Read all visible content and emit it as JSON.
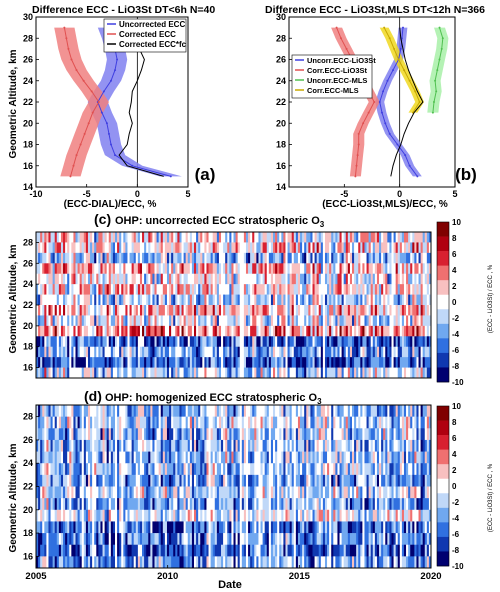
{
  "chart_data": [
    {
      "type": "line",
      "panel_label": "(a)",
      "title": "Difference ECC - LiO3St DT<6h N=40",
      "xlabel": "(ECC-DIAL)/ECC, %",
      "ylabel": "Geometric Altitude, km",
      "xlim": [
        -10,
        5
      ],
      "ylim": [
        14,
        30
      ],
      "xticks": [
        "-10",
        "-5",
        "0",
        "5"
      ],
      "yticks": [
        "14",
        "16",
        "18",
        "20",
        "22",
        "24",
        "26",
        "28",
        "30"
      ],
      "legend_position": "top-right",
      "series": [
        {
          "name": "Uncorrected ECC",
          "color": "#3f3fe0",
          "band_color": "#8080f0",
          "altitude": [
            15,
            16,
            17,
            18,
            19,
            20,
            21,
            22,
            23,
            24,
            25,
            26,
            27,
            28,
            29
          ],
          "mean": [
            3.3,
            -0.5,
            -2.2,
            -2.6,
            -2.8,
            -3.0,
            -3.5,
            -3.9,
            -3.3,
            -2.6,
            -2.2,
            -2.0,
            -2.2,
            -2.5,
            -2.9
          ],
          "lower": [
            2.2,
            -1.5,
            -3.2,
            -3.6,
            -3.8,
            -4.0,
            -4.5,
            -4.9,
            -4.3,
            -3.6,
            -3.2,
            -3.0,
            -3.2,
            -3.5,
            -3.9
          ],
          "upper": [
            4.4,
            0.5,
            -1.2,
            -1.6,
            -1.8,
            -2.0,
            -2.5,
            -2.9,
            -2.3,
            -1.6,
            -1.2,
            -1.0,
            -1.2,
            -1.5,
            -1.9
          ]
        },
        {
          "name": "Corrected ECC",
          "color": "#e05050",
          "band_color": "#f08080",
          "altitude": [
            15,
            16,
            17,
            18,
            19,
            20,
            21,
            22,
            23,
            24,
            25,
            26,
            27,
            28,
            29
          ],
          "mean": [
            -6.6,
            -6.3,
            -6.0,
            -5.6,
            -5.2,
            -4.8,
            -4.4,
            -3.8,
            -4.5,
            -5.3,
            -6.0,
            -6.5,
            -6.8,
            -7.0,
            -7.2
          ],
          "lower": [
            -7.6,
            -7.3,
            -7.0,
            -6.6,
            -6.2,
            -5.8,
            -5.4,
            -4.8,
            -5.5,
            -6.3,
            -7.0,
            -7.5,
            -7.8,
            -8.0,
            -8.2
          ],
          "upper": [
            -5.6,
            -5.3,
            -5.0,
            -4.6,
            -4.2,
            -3.8,
            -3.4,
            -2.8,
            -3.5,
            -4.3,
            -5.0,
            -5.5,
            -5.8,
            -6.0,
            -6.2
          ]
        },
        {
          "name": "Corrected ECC*fc",
          "color": "#000000",
          "altitude": [
            15,
            16,
            17,
            18,
            19,
            20,
            21,
            22,
            23,
            24,
            25,
            26,
            27,
            28,
            29
          ],
          "mean": [
            2.6,
            -1.0,
            -1.8,
            -1.0,
            -0.8,
            -0.5,
            -0.8,
            -0.6,
            -0.5,
            0.0,
            0.4,
            0.7,
            0.2,
            -1.0,
            -1.8
          ]
        }
      ]
    },
    {
      "type": "line",
      "panel_label": "(b)",
      "title": "Difference ECC - LiO3St,MLS DT<12h N=366",
      "xlabel": "(ECC-LiO3St,MLS)/ECC, %",
      "ylabel": "",
      "xlim": [
        -10,
        5
      ],
      "ylim": [
        14,
        30
      ],
      "xticks": [
        "-5",
        "0",
        "5"
      ],
      "yticks": [
        "14",
        "16",
        "18",
        "20",
        "22",
        "24",
        "26",
        "28",
        "30"
      ],
      "legend_position": "middle-left",
      "series": [
        {
          "name": "Uncorr.ECC-LiO3St",
          "color": "#3f3fe0",
          "band_color": "#8080f0",
          "altitude": [
            15,
            16,
            17,
            18,
            19,
            20,
            21,
            22,
            23,
            24,
            25,
            26,
            27,
            28,
            29
          ],
          "mean": [
            1.6,
            0.9,
            0.5,
            -0.2,
            -0.9,
            -1.3,
            -1.6,
            -1.8,
            -1.5,
            -1.1,
            -0.6,
            -0.1,
            0.1,
            0.2,
            0.3
          ],
          "lower": [
            1.2,
            0.5,
            0.1,
            -0.6,
            -1.3,
            -1.7,
            -2.0,
            -2.2,
            -1.9,
            -1.5,
            -1.0,
            -0.5,
            -0.3,
            -0.2,
            -0.1
          ],
          "upper": [
            2.0,
            1.3,
            0.9,
            0.2,
            -0.5,
            -0.9,
            -1.2,
            -1.4,
            -1.1,
            -0.7,
            -0.2,
            0.3,
            0.5,
            0.6,
            0.7
          ]
        },
        {
          "name": "Corr.ECC-LiO3St",
          "color": "#e05050",
          "band_color": "#f08080",
          "altitude": [
            15,
            16,
            17,
            18,
            19,
            20,
            21,
            22,
            23,
            24,
            25,
            26,
            27,
            28,
            29
          ],
          "mean": [
            -4.0,
            -3.9,
            -3.8,
            -3.7,
            -3.7,
            -3.3,
            -2.8,
            -2.3,
            -2.8,
            -3.3,
            -3.8,
            -4.3,
            -4.8,
            -5.3,
            -5.7
          ],
          "lower": [
            -4.5,
            -4.4,
            -4.3,
            -4.2,
            -4.2,
            -3.8,
            -3.3,
            -2.8,
            -3.3,
            -3.8,
            -4.3,
            -4.8,
            -5.3,
            -5.8,
            -6.2
          ],
          "upper": [
            -3.5,
            -3.4,
            -3.3,
            -3.2,
            -3.2,
            -2.8,
            -2.3,
            -1.8,
            -2.3,
            -2.8,
            -3.3,
            -3.8,
            -4.3,
            -4.8,
            -5.2
          ]
        },
        {
          "name": "Uncorr.ECC-MLS",
          "color": "#50c050",
          "band_color": "#a8f0a8",
          "altitude": [
            21,
            22,
            23,
            24,
            25,
            26,
            27,
            28,
            29
          ],
          "mean": [
            3.0,
            3.1,
            3.3,
            3.2,
            3.4,
            3.6,
            3.8,
            3.9,
            3.6
          ],
          "lower": [
            2.5,
            2.6,
            2.8,
            2.7,
            2.9,
            3.1,
            3.3,
            3.4,
            3.1
          ],
          "upper": [
            3.5,
            3.6,
            3.8,
            3.7,
            3.9,
            4.1,
            4.3,
            4.4,
            4.1
          ]
        },
        {
          "name": "Corr.ECC-MLS",
          "color": "#c8a800",
          "band_color": "#f0d820",
          "altitude": [
            21,
            22,
            23,
            24,
            25,
            26,
            27,
            28,
            29
          ],
          "mean": [
            1.2,
            1.8,
            1.4,
            0.9,
            0.4,
            -0.1,
            -0.5,
            -0.9,
            -1.4
          ],
          "lower": [
            0.8,
            1.4,
            1.0,
            0.5,
            0.0,
            -0.5,
            -0.9,
            -1.3,
            -1.8
          ],
          "upper": [
            1.6,
            2.2,
            1.8,
            1.3,
            0.8,
            0.3,
            -0.1,
            -0.5,
            -1.0
          ]
        },
        {
          "name": "",
          "color": "#000000",
          "altitude": [
            15,
            16,
            17,
            18,
            19,
            20,
            21,
            22,
            23,
            24,
            25,
            26,
            27,
            28,
            29
          ],
          "mean": [
            -0.8,
            -0.6,
            -0.3,
            0.1,
            0.4,
            0.8,
            1.3,
            2.1,
            1.6,
            1.2,
            0.8,
            0.5,
            0.3,
            0.1,
            0.0
          ]
        }
      ]
    },
    {
      "type": "heatmap",
      "panel_label": "(c)",
      "title": "OHP: uncorrected ECC stratospheric O",
      "title_subscript": "3",
      "xlabel": "",
      "ylabel": "Geometric Altitude, km",
      "colorbar_label": "(ECC - LiO3St) / ECC , %",
      "xlim": [
        2005,
        2020
      ],
      "ylim": [
        15,
        29
      ],
      "yticks": [
        "16",
        "18",
        "20",
        "22",
        "24",
        "26",
        "28"
      ],
      "colorbar_ticks": [
        "10",
        "8",
        "6",
        "4",
        "2",
        "0",
        "-2",
        "-4",
        "-6",
        "-8",
        "-10"
      ],
      "colorbar_colors": [
        "#800000",
        "#b00010",
        "#d82030",
        "#f07070",
        "#f8c0c0",
        "#ffffff",
        "#c0d8f8",
        "#70a8f0",
        "#3070e0",
        "#1038b0",
        "#000070"
      ],
      "row_biases": [
        -2,
        -7,
        -4,
        -6,
        3,
        -1,
        2,
        -2,
        1,
        0,
        2,
        -3,
        1,
        0
      ],
      "column_count": 190,
      "column_seed": 17
    },
    {
      "type": "heatmap",
      "panel_label": "(d)",
      "title": "OHP: homogenized ECC stratospheric O",
      "title_subscript": "3",
      "xlabel": "Date",
      "ylabel": "Geometric Altitude, km",
      "colorbar_label": "(ECC - LiO3St) / ECC , %",
      "xlim": [
        2005,
        2020
      ],
      "ylim": [
        15,
        29
      ],
      "xticks": [
        "2005",
        "2010",
        "2015",
        "2020"
      ],
      "yticks": [
        "16",
        "18",
        "20",
        "22",
        "24",
        "26",
        "28"
      ],
      "colorbar_ticks": [
        "10",
        "8",
        "6",
        "4",
        "2",
        "0",
        "-2",
        "-4",
        "-6",
        "-8",
        "-10"
      ],
      "colorbar_colors": [
        "#800000",
        "#b00010",
        "#d82030",
        "#f07070",
        "#f8c0c0",
        "#ffffff",
        "#c0d8f8",
        "#70a8f0",
        "#3070e0",
        "#1038b0",
        "#000070"
      ],
      "row_biases": [
        -4,
        -6,
        -5,
        -6,
        -1,
        -4,
        -2,
        -4,
        -3,
        -3,
        -3,
        -3,
        -2,
        -3
      ],
      "column_count": 190,
      "column_seed": 29
    }
  ]
}
